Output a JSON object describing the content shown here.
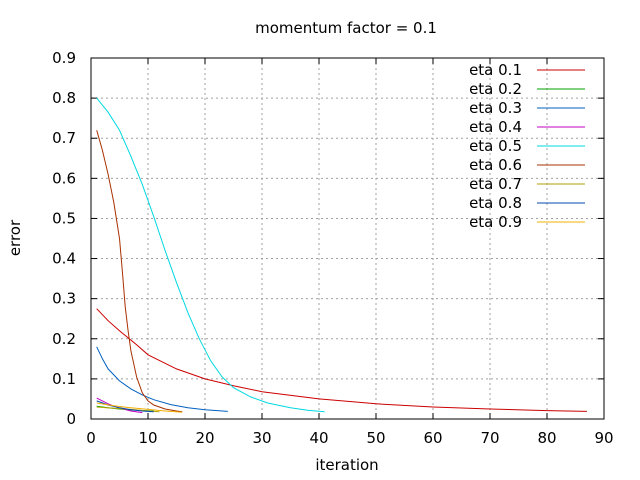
{
  "chart_data": {
    "type": "line",
    "title": "momentum factor = 0.1",
    "xlabel": "iteration",
    "ylabel": "error",
    "xlim": [
      0,
      90
    ],
    "ylim": [
      0,
      0.9
    ],
    "xticks": [
      "0",
      "10",
      "20",
      "30",
      "40",
      "50",
      "60",
      "70",
      "80",
      "90"
    ],
    "yticks": [
      "0",
      "0.1",
      "0.2",
      "0.3",
      "0.4",
      "0.5",
      "0.6",
      "0.7",
      "0.8",
      "0.9"
    ],
    "grid": true,
    "legend_position": "top-right",
    "series": [
      {
        "name": "eta 0.1",
        "color": "#cc0000",
        "x": [
          1,
          3,
          5,
          8,
          10,
          15,
          20,
          25,
          30,
          40,
          50,
          60,
          70,
          80,
          87
        ],
        "y": [
          0.275,
          0.245,
          0.22,
          0.185,
          0.16,
          0.125,
          0.1,
          0.083,
          0.068,
          0.05,
          0.038,
          0.03,
          0.025,
          0.021,
          0.019
        ]
      },
      {
        "name": "eta 0.2",
        "color": "#00a000",
        "x": [
          1,
          3,
          5,
          8,
          11
        ],
        "y": [
          0.032,
          0.028,
          0.025,
          0.022,
          0.02
        ]
      },
      {
        "name": "eta 0.3",
        "color": "#0060c0",
        "x": [
          1,
          2,
          3,
          5,
          7,
          9,
          11,
          14,
          17,
          20,
          24
        ],
        "y": [
          0.18,
          0.15,
          0.125,
          0.095,
          0.075,
          0.06,
          0.048,
          0.036,
          0.028,
          0.023,
          0.019
        ]
      },
      {
        "name": "eta 0.4",
        "color": "#c000c0",
        "x": [
          1,
          3,
          5,
          7,
          9
        ],
        "y": [
          0.052,
          0.038,
          0.027,
          0.02,
          0.016
        ]
      },
      {
        "name": "eta 0.5",
        "color": "#00d8e0",
        "x": [
          1,
          3,
          5,
          7,
          9,
          11,
          13,
          15,
          17,
          19,
          21,
          23,
          25,
          28,
          31,
          35,
          38,
          41
        ],
        "y": [
          0.8,
          0.765,
          0.72,
          0.655,
          0.585,
          0.505,
          0.42,
          0.34,
          0.265,
          0.2,
          0.145,
          0.105,
          0.078,
          0.055,
          0.04,
          0.028,
          0.022,
          0.018
        ]
      },
      {
        "name": "eta 0.6",
        "color": "#a83000",
        "x": [
          1,
          2,
          3,
          4,
          5,
          5.5,
          6,
          6.5,
          7,
          8,
          9,
          10,
          11,
          13,
          15,
          16
        ],
        "y": [
          0.72,
          0.67,
          0.61,
          0.54,
          0.45,
          0.37,
          0.28,
          0.22,
          0.17,
          0.105,
          0.065,
          0.045,
          0.035,
          0.025,
          0.02,
          0.018
        ]
      },
      {
        "name": "eta 0.7",
        "color": "#b0a000",
        "x": [
          1,
          4,
          7,
          10,
          12
        ],
        "y": [
          0.03,
          0.027,
          0.024,
          0.02,
          0.018
        ]
      },
      {
        "name": "eta 0.8",
        "color": "#0048b0",
        "x": [
          1,
          3,
          5,
          7,
          9,
          11
        ],
        "y": [
          0.045,
          0.035,
          0.028,
          0.023,
          0.02,
          0.018
        ]
      },
      {
        "name": "eta 0.9",
        "color": "#f0b000",
        "x": [
          1,
          4,
          7,
          10,
          13,
          16
        ],
        "y": [
          0.04,
          0.033,
          0.028,
          0.024,
          0.02,
          0.017
        ]
      }
    ]
  }
}
